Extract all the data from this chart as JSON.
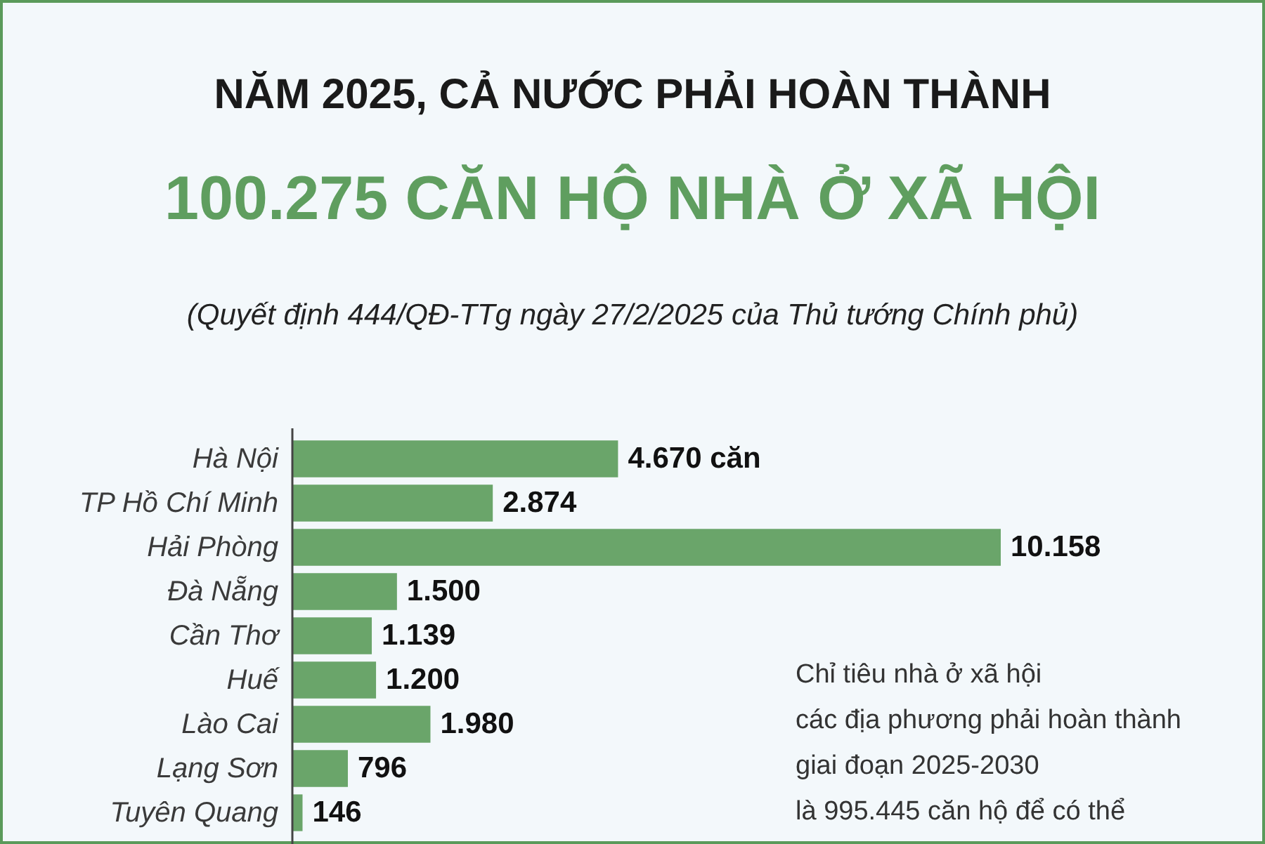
{
  "chart_data": {
    "type": "bar",
    "orientation": "horizontal",
    "title": "NĂM 2025, CẢ NƯỚC PHẢI HOÀN THÀNH",
    "subtitle": "100.275 CĂN HỘ NHÀ Ở XÃ HỘI",
    "categories": [
      "Hà Nội",
      "TP Hồ Chí Minh",
      "Hải Phòng",
      "Đà Nẵng",
      "Cần Thơ",
      "Huế",
      "Lào Cai",
      "Lạng Sơn",
      "Tuyên Quang"
    ],
    "values": [
      4670,
      2874,
      10158,
      1500,
      1139,
      1200,
      1980,
      796,
      146
    ],
    "value_labels": [
      "4.670 căn",
      "2.874",
      "10.158",
      "1.500",
      "1.139",
      "1.200",
      "1.980",
      "796",
      "146"
    ],
    "color": "#6aa56a",
    "annotations": [
      "(Quyết định 444/QĐ-TTg ngày 27/2/2025 của Thủ tướng Chính phủ)",
      "Chỉ tiêu nhà ở xã hội",
      "các địa phương phải hoàn thành",
      "giai đoạn 2025-2030",
      "là 995.445 căn hộ để có thể"
    ]
  }
}
